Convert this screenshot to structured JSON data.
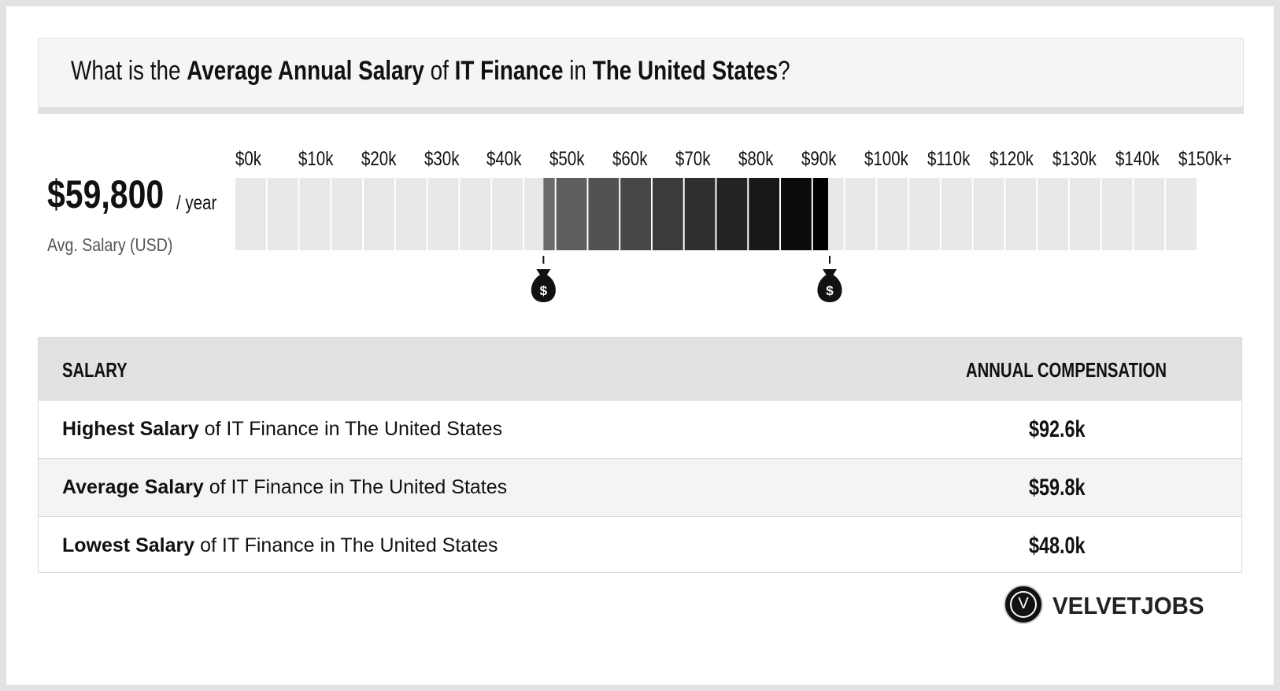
{
  "header": {
    "t1": "What is the ",
    "t2": "Average Annual Salary",
    "t3": " of ",
    "t4": "IT Finance",
    "t5": " in ",
    "t6": "The United States",
    "t7": "?"
  },
  "average": {
    "value": "$59,800",
    "unit": "/ year",
    "label": "Avg. Salary (USD)"
  },
  "chart_data": {
    "type": "bar",
    "title": "",
    "x_ticks": [
      "$0k",
      "$10k",
      "$20k",
      "$30k",
      "$40k",
      "$50k",
      "$60k",
      "$70k",
      "$80k",
      "$90k",
      "$100k",
      "$110k",
      "$120k",
      "$130k",
      "$140k",
      "$150k+"
    ],
    "xlim": [
      0,
      150
    ],
    "range_low": 48.0,
    "range_high": 92.6,
    "average": 59.8,
    "unit": "thousand USD",
    "markers": [
      "money-bag-icon",
      "money-bag-icon"
    ],
    "colors": {
      "empty": "#e8e8e8",
      "range_start": "#6a6a6a",
      "range_end": "#000000"
    }
  },
  "table": {
    "head_left": "SALARY",
    "head_right": "ANNUAL COMPENSATION",
    "rows": [
      {
        "bold": "Highest Salary",
        "rest": " of IT Finance in The United States",
        "value": "$92.6k"
      },
      {
        "bold": "Average Salary",
        "rest": " of IT Finance in The United States",
        "value": "$59.8k"
      },
      {
        "bold": "Lowest Salary",
        "rest": " of IT Finance in The United States",
        "value": "$48.0k"
      }
    ]
  },
  "logo": {
    "mark": "V",
    "text": "VELVETJOBS"
  }
}
